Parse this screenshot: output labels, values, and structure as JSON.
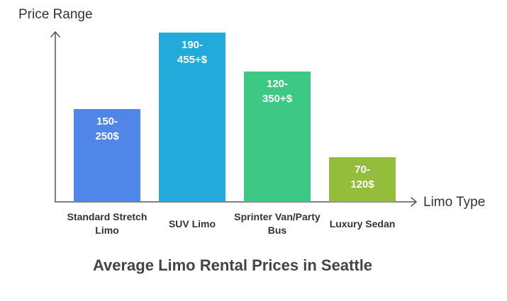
{
  "chart_data": {
    "type": "bar",
    "title": "Average Limo Rental Prices in Seattle",
    "y_label": "Price Range",
    "x_label": "Limo Type",
    "categories": [
      "Standard Stretch Limo",
      "SUV Limo",
      "Sprinter Van/Party Bus",
      "Luxury Sedan"
    ],
    "low": [
      150,
      190,
      120,
      70
    ],
    "high": [
      250,
      455,
      350,
      120
    ],
    "value_labels": [
      "150-250$",
      "190-455+$",
      "120-350+$",
      "70-120$"
    ],
    "colors": [
      "#4f86e8",
      "#22aadb",
      "#3ec885",
      "#93bd3a"
    ]
  }
}
